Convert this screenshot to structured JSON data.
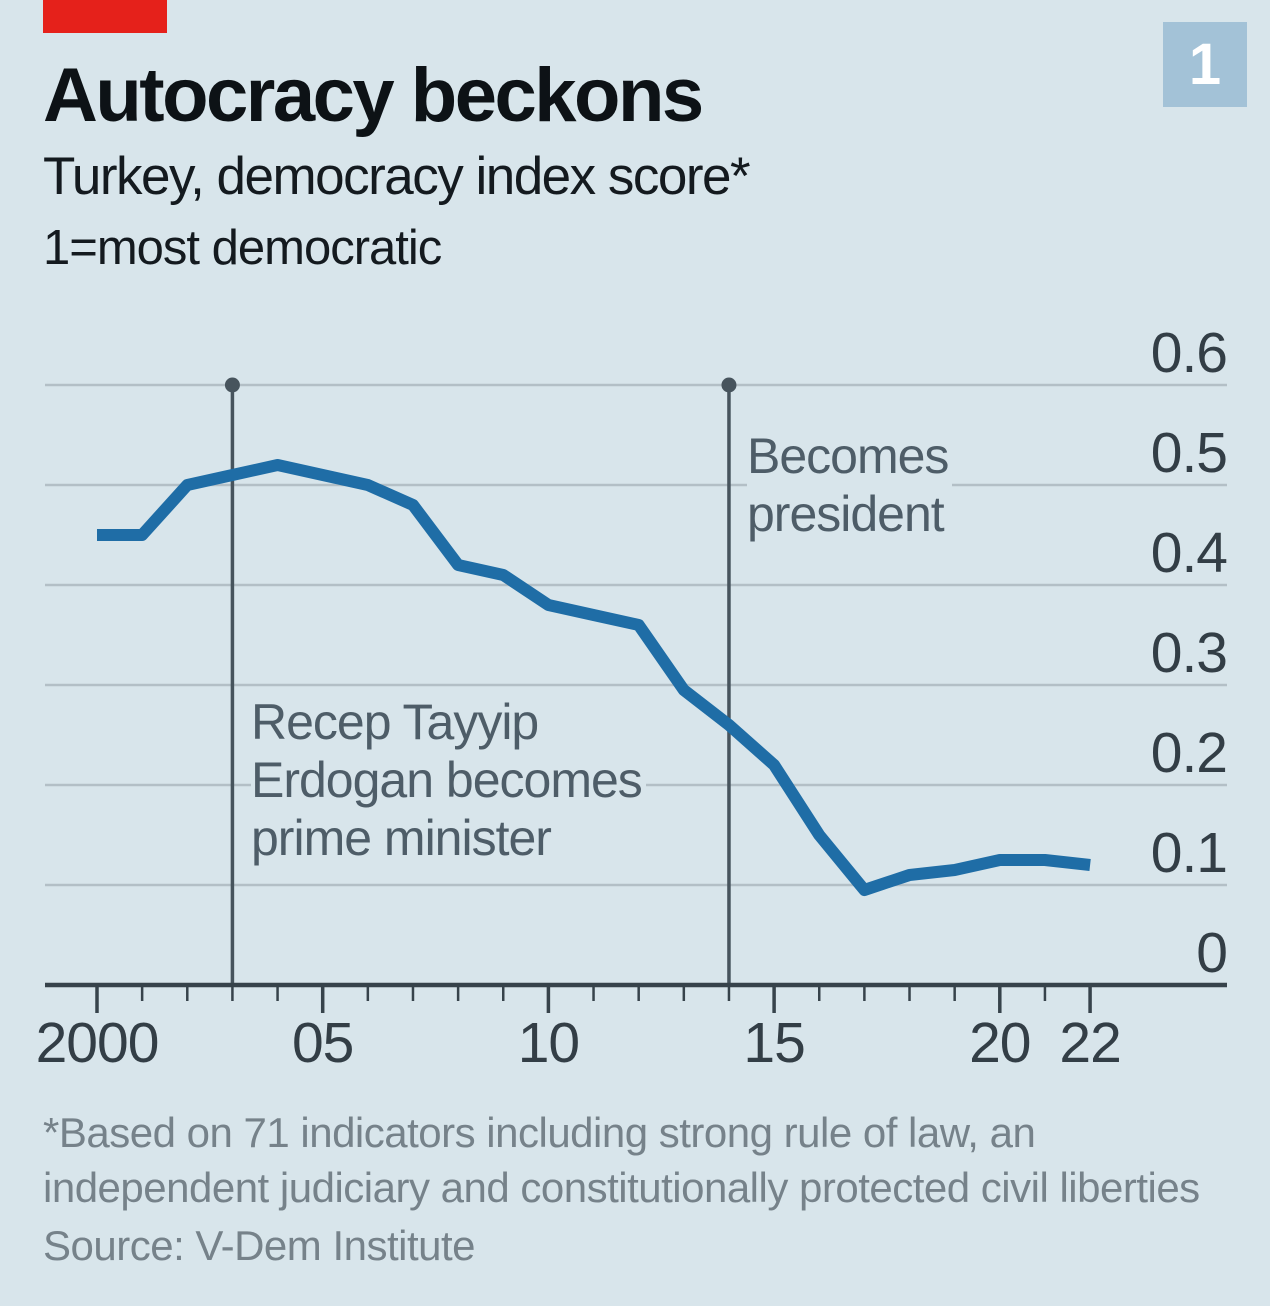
{
  "header": {
    "figure_number": "1",
    "title": "Autocracy beckons",
    "subtitle": "Turkey, democracy index score*",
    "unit_note": "1=most democratic"
  },
  "footer": {
    "footnote_line1": "*Based on 71 indicators including strong rule of law, an",
    "footnote_line2": "independent judiciary and constitutionally protected civil liberties",
    "source": "Source: V-Dem Institute"
  },
  "colors": {
    "background": "#d8e5eb",
    "brand_red": "#e5211b",
    "badge_blue": "#a3c2d7",
    "line_blue": "#1f6da6",
    "gridline": "#b3bfc6",
    "axis": "#37434b",
    "event_line": "#47545d",
    "annotation_text": "#4e5d68",
    "footnote_text": "#76828a"
  },
  "chart_data": {
    "type": "line",
    "title": "Autocracy beckons",
    "subtitle": "Turkey, democracy index score*",
    "unit_note": "1=most democratic",
    "x": [
      2000,
      2001,
      2002,
      2003,
      2004,
      2005,
      2006,
      2007,
      2008,
      2009,
      2010,
      2011,
      2012,
      2013,
      2014,
      2015,
      2016,
      2017,
      2018,
      2019,
      2020,
      2021,
      2022
    ],
    "series": [
      {
        "name": "Turkey democracy index score",
        "values": [
          0.45,
          0.45,
          0.5,
          0.51,
          0.52,
          0.51,
          0.5,
          0.48,
          0.42,
          0.41,
          0.38,
          0.37,
          0.36,
          0.295,
          0.26,
          0.22,
          0.15,
          0.095,
          0.11,
          0.115,
          0.125,
          0.125,
          0.12
        ]
      }
    ],
    "ylim": [
      0,
      0.6
    ],
    "yticks": [
      0,
      0.1,
      0.2,
      0.3,
      0.4,
      0.5,
      0.6
    ],
    "ytick_labels": [
      "0",
      "0.1",
      "0.2",
      "0.3",
      "0.4",
      "0.5",
      "0.6"
    ],
    "xticks": [
      2000,
      2005,
      2010,
      2015,
      2020,
      2022
    ],
    "xtick_labels": [
      "2000",
      "05",
      "10",
      "15",
      "20",
      "22"
    ],
    "grid": "horizontal",
    "axis_label_position": "right",
    "legend": "none",
    "annotations": [
      {
        "year": 2003,
        "text_lines": [
          "Recep Tayyip",
          "Erdogan becomes",
          "prime minister"
        ]
      },
      {
        "year": 2014,
        "text_lines": [
          "Becomes",
          "president"
        ]
      }
    ]
  }
}
